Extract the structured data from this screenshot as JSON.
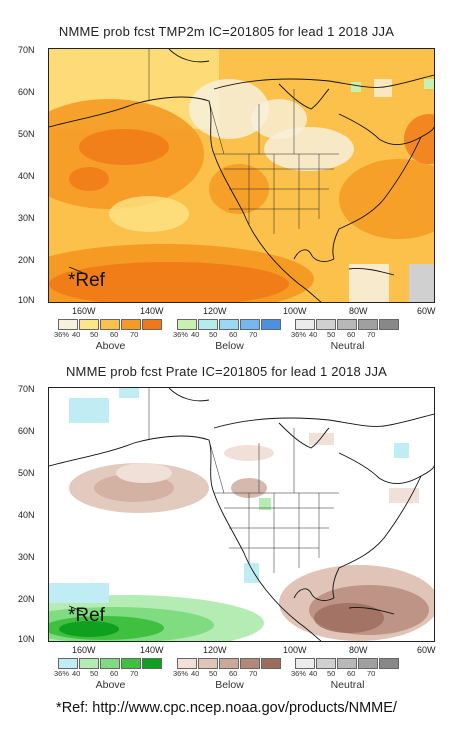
{
  "panels": [
    {
      "title": "NMME prob fcst TMP2m IC=201805 for lead 1 2018 JJA",
      "variable": "TMP2m",
      "ref_label": "*Ref",
      "lat_labels": [
        "70N",
        "60N",
        "50N",
        "40N",
        "30N",
        "20N",
        "10N"
      ],
      "lon_labels": [
        "160W",
        "140W",
        "120W",
        "100W",
        "80W",
        "60W"
      ],
      "legend": [
        {
          "category": "Above",
          "ticks": [
            "36%",
            "40",
            "50",
            "60",
            "70"
          ],
          "colors": [
            "#f7f0dc",
            "#fde68a",
            "#fbc14a",
            "#f59a23",
            "#f07818"
          ]
        },
        {
          "category": "Below",
          "ticks": [
            "36%",
            "40",
            "50",
            "60",
            "70"
          ],
          "colors": [
            "#c8f0b0",
            "#b4ecec",
            "#9cd8f4",
            "#74b8f0",
            "#4c90e0"
          ]
        },
        {
          "category": "Neutral",
          "ticks": [
            "36%",
            "40",
            "50",
            "60",
            "70"
          ],
          "colors": [
            "#ececec",
            "#d0d0d0",
            "#b8b8b8",
            "#a0a0a0",
            "#888888"
          ]
        }
      ]
    },
    {
      "title": "NMME prob fcst Prate IC=201805 for lead 1 2018 JJA",
      "variable": "Prate",
      "ref_label": "*Ref",
      "lat_labels": [
        "70N",
        "60N",
        "50N",
        "40N",
        "30N",
        "20N",
        "10N"
      ],
      "lon_labels": [
        "160W",
        "140W",
        "120W",
        "100W",
        "80W",
        "60W"
      ],
      "legend": [
        {
          "category": "Above",
          "ticks": [
            "36%",
            "40",
            "50",
            "60",
            "70"
          ],
          "colors": [
            "#c0ecf4",
            "#b4ecb4",
            "#80dc80",
            "#40c040",
            "#10a020"
          ]
        },
        {
          "category": "Below",
          "ticks": [
            "36%",
            "40",
            "50",
            "60",
            "70"
          ],
          "colors": [
            "#f0e0d8",
            "#e0c4b8",
            "#cca898",
            "#b48878",
            "#9c6c5c"
          ]
        },
        {
          "category": "Neutral",
          "ticks": [
            "36%",
            "40",
            "50",
            "60",
            "70"
          ],
          "colors": [
            "#ececec",
            "#d0d0d0",
            "#b8b8b8",
            "#a0a0a0",
            "#888888"
          ]
        }
      ]
    }
  ],
  "footer": "*Ref: http://www.cpc.ncep.noaa.gov/products/NMME/"
}
